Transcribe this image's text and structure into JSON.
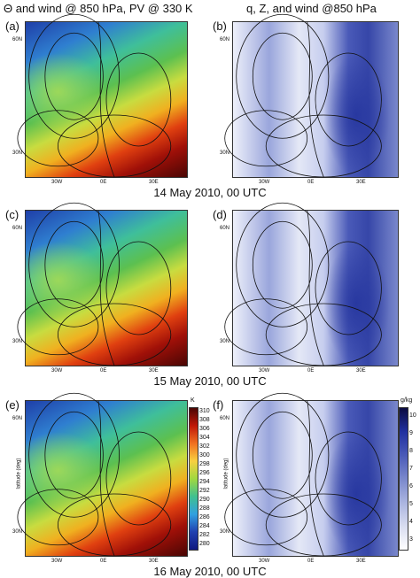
{
  "header": {
    "left_title": "Θ and wind @ 850 hPa, PV @ 330 K",
    "right_title": "q, Z, and wind @850 hPa"
  },
  "rows": [
    {
      "date": "14 May 2010, 00 UTC",
      "panels": [
        "(a)",
        "(b)"
      ]
    },
    {
      "date": "15 May 2010, 00 UTC",
      "panels": [
        "(c)",
        "(d)"
      ]
    },
    {
      "date": "16 May 2010, 00 UTC",
      "panels": [
        "(e)",
        "(f)"
      ]
    }
  ],
  "map_labels": {
    "lat": [
      "60N",
      "30N"
    ],
    "lon": [
      "30W",
      "0E",
      "30E"
    ],
    "ylabel": "latitude (deg)"
  },
  "colorbars": {
    "theta": {
      "unit": "K",
      "ticks": [
        310,
        308,
        306,
        304,
        302,
        300,
        298,
        296,
        294,
        292,
        290,
        288,
        286,
        284,
        282,
        280
      ]
    },
    "q": {
      "unit": "g/kg",
      "ticks": [
        10,
        9,
        8,
        7,
        6,
        5,
        4,
        3
      ]
    }
  }
}
